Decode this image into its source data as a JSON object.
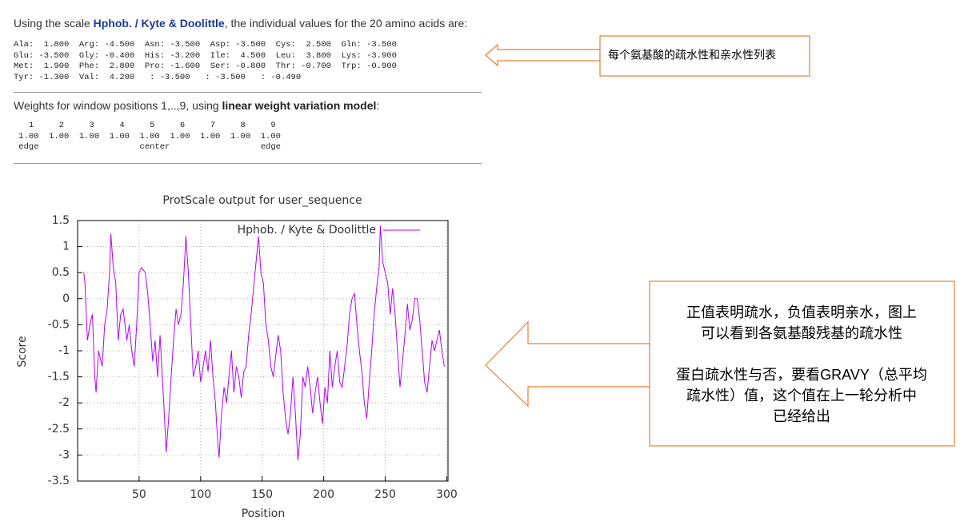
{
  "scale_line": {
    "prefix": "Using the scale ",
    "link": "Hphob. / Kyte & Doolittle",
    "suffix": ", the individual values for the 20 amino acids are:"
  },
  "amino_rows": [
    "Ala:  1.800  Arg: -4.500  Asn: -3.500  Asp: -3.500  Cys:  2.500  Gln: -3.500",
    "Glu: -3.500  Gly: -0.400  His: -3.200  Ile:  4.500  Leu:  3.800  Lys: -3.900",
    "Met:  1.900  Phe:  2.800  Pro: -1.600  Ser: -0.800  Thr: -0.700  Trp: -0.900",
    "Tyr: -1.300  Val:  4.200   : -3.500   : -3.500   : -0.490"
  ],
  "weights_line": {
    "prefix": "Weights for window positions 1,..,9, using ",
    "model": "linear weight variation model",
    "suffix": ":"
  },
  "weights_rows": [
    "   1     2     3     4     5     6     7     8     9",
    " 1.00  1.00  1.00  1.00  1.00  1.00  1.00  1.00  1.00",
    " edge                    center                  edge"
  ],
  "chart_data": {
    "type": "line",
    "title": "ProtScale output for user_sequence",
    "x_label": "Position",
    "y_label": "Score",
    "x": [
      5,
      6,
      8,
      10,
      12,
      14,
      15,
      17,
      20,
      22,
      24,
      26,
      27,
      29,
      31,
      33,
      35,
      37,
      40,
      42,
      44,
      46,
      48,
      50,
      52,
      55,
      57,
      59,
      61,
      63,
      65,
      67,
      70,
      72,
      74,
      76,
      78,
      80,
      82,
      84,
      86,
      88,
      90,
      92,
      94,
      96,
      98,
      100,
      102,
      104,
      106,
      108,
      110,
      112,
      114,
      115,
      117,
      119,
      121,
      123,
      125,
      127,
      129,
      131,
      133,
      135,
      137,
      139,
      141,
      143,
      145,
      147,
      149,
      151,
      153,
      155,
      157,
      159,
      161,
      163,
      165,
      167,
      169,
      171,
      173,
      175,
      177,
      179,
      181,
      183,
      185,
      187,
      189,
      191,
      193,
      195,
      197,
      199,
      201,
      203,
      205,
      207,
      209,
      211,
      213,
      215,
      217,
      219,
      221,
      223,
      225,
      227,
      229,
      231,
      233,
      235,
      237,
      239,
      241,
      243,
      245,
      246,
      248,
      250,
      252,
      254,
      256,
      258,
      260,
      262,
      264,
      266,
      268,
      270,
      272,
      274,
      276,
      278,
      280,
      282,
      284,
      286,
      288,
      290,
      292,
      294,
      296,
      298
    ],
    "series": [
      {
        "name": "Hphob. / Kyte & Doolittle",
        "color": "#b400ff",
        "values": [
          0.5,
          0.3,
          -0.8,
          -0.5,
          -0.3,
          -1.5,
          -1.8,
          -1.0,
          -1.3,
          -0.5,
          -0.2,
          0.5,
          1.25,
          0.6,
          0.3,
          -0.8,
          -0.3,
          -0.2,
          -0.8,
          -0.5,
          -1.0,
          -1.3,
          -0.5,
          0.5,
          0.6,
          0.5,
          0.1,
          -0.5,
          -1.2,
          -0.8,
          -1.5,
          -0.7,
          -2.0,
          -2.95,
          -2.3,
          -1.5,
          -0.8,
          -0.2,
          -0.5,
          -0.3,
          0.3,
          1.2,
          0.5,
          -0.5,
          -1.5,
          -1.3,
          -1.0,
          -1.6,
          -1.3,
          -1.0,
          -1.4,
          -0.8,
          -1.5,
          -2.0,
          -2.8,
          -3.05,
          -2.2,
          -1.7,
          -2.0,
          -1.5,
          -1.0,
          -1.8,
          -1.3,
          -1.5,
          -1.9,
          -1.4,
          -1.3,
          -0.7,
          -0.3,
          0.2,
          0.7,
          1.2,
          0.5,
          0.3,
          -0.5,
          -0.8,
          -1.3,
          -1.5,
          -1.1,
          -0.7,
          -1.0,
          -1.8,
          -2.3,
          -2.6,
          -2.2,
          -1.5,
          -2.2,
          -3.1,
          -2.6,
          -1.5,
          -1.7,
          -1.3,
          -1.7,
          -2.2,
          -1.8,
          -1.5,
          -2.0,
          -2.4,
          -1.7,
          -2.0,
          -1.0,
          -1.7,
          -1.3,
          -1.0,
          -1.6,
          -1.7,
          -1.3,
          -0.9,
          -0.3,
          0.0,
          0.1,
          -0.5,
          -1.0,
          -1.4,
          -2.0,
          -2.3,
          -1.6,
          -1.0,
          -0.3,
          0.2,
          0.6,
          1.4,
          0.7,
          0.5,
          0.3,
          -0.3,
          0.2,
          -0.3,
          -1.0,
          -1.7,
          -1.2,
          -0.7,
          -0.1,
          -0.6,
          -0.4,
          0.0,
          0.0,
          -0.4,
          -1.0,
          -1.6,
          -1.8,
          -1.3,
          -0.8,
          -1.0,
          -0.8,
          -0.6,
          -1.0,
          -1.3
        ]
      }
    ],
    "xlim": [
      0,
      301
    ],
    "xticks": [
      50,
      100,
      150,
      200,
      250,
      300
    ],
    "ylim": [
      -3.5,
      1.5
    ],
    "yticks": [
      -3.5,
      -3,
      -2.5,
      -2,
      -1.5,
      -1,
      -0.5,
      0,
      0.5,
      1,
      1.5
    ],
    "grid": true,
    "legend": "upper right"
  },
  "annotations": {
    "top": "每个氨基酸的疏水性和亲水性列表",
    "bottom": [
      "正值表明疏水，负值表明亲水，图上",
      "可以看到各氨基酸残基的疏水性",
      "蛋白疏水性与否，要看GRAVY（总平均",
      "疏水性）值，这个值在上一轮分析中",
      "已经给出"
    ]
  }
}
